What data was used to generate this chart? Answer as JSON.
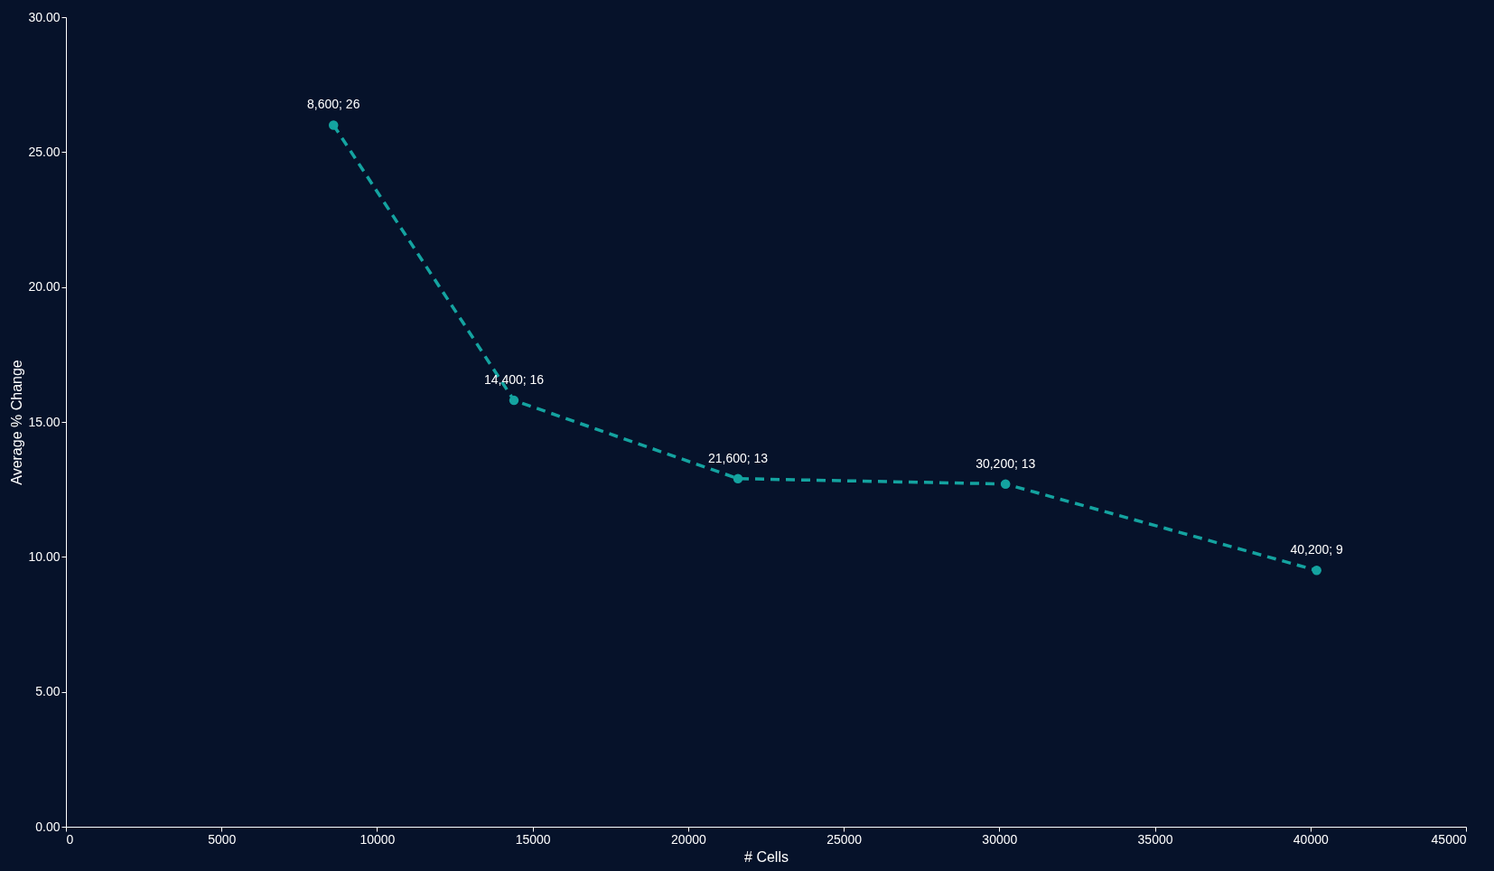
{
  "chart_data": {
    "type": "line",
    "xlabel": "# Cells",
    "ylabel": "Average % Change",
    "x": [
      8600,
      14400,
      21600,
      30200,
      40200
    ],
    "series": [
      {
        "color": "#14a3a0",
        "values": [
          26,
          15.8,
          12.9,
          12.7,
          9.5
        ],
        "value_labels": [
          "8,600; 26",
          "14,400; 16",
          "21,600; 13",
          "30,200; 13",
          "40,200; 9"
        ]
      }
    ],
    "xlim": [
      0,
      45000
    ],
    "xticks": [
      0,
      5000,
      10000,
      15000,
      20000,
      25000,
      30000,
      35000,
      40000,
      45000
    ],
    "ylim": [
      0,
      30
    ],
    "yticks": [
      {
        "value": 0,
        "label": "0.00"
      },
      {
        "value": 5,
        "label": "5.00"
      },
      {
        "value": 10,
        "label": "10.00"
      },
      {
        "value": 15,
        "label": "15.00"
      },
      {
        "value": 20,
        "label": "20.00"
      },
      {
        "value": 25,
        "label": "25.00"
      },
      {
        "value": 30,
        "label": "30.00"
      }
    ],
    "grid": false,
    "marker": "circle",
    "line_style": "dashed"
  }
}
